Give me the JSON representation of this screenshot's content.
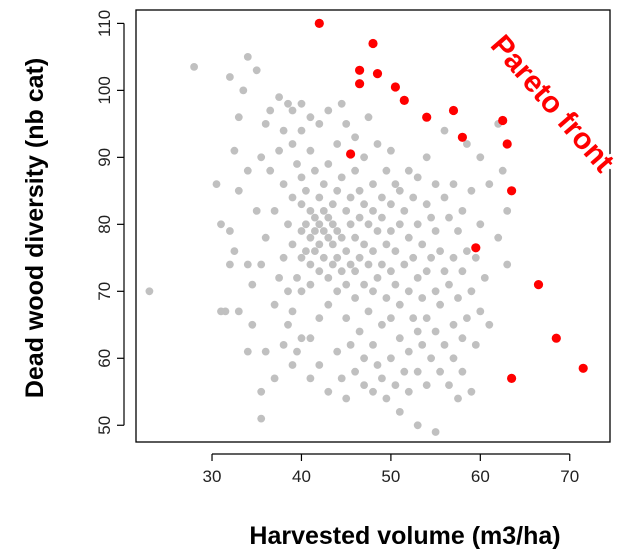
{
  "chart_data": {
    "type": "scatter",
    "xlabel": "Harvested volume (m3/ha)",
    "ylabel": "Dead wood diversity (nb cat)",
    "xlim": [
      21.5,
      74.5
    ],
    "ylim": [
      47.5,
      112
    ],
    "x_ticks": [
      30,
      40,
      50,
      60,
      70
    ],
    "y_ticks": [
      50,
      60,
      70,
      80,
      90,
      100,
      110
    ],
    "grid": false,
    "annotation": "Pareto front",
    "colors": {
      "dominated": "#c0c0c0",
      "pareto": "#ff0000",
      "annotation": "#ff0000",
      "axis": "#000000"
    },
    "series": [
      {
        "key": "dominated",
        "points": [
          [
            23,
            70
          ],
          [
            28,
            103.5
          ],
          [
            30.5,
            86
          ],
          [
            31,
            67
          ],
          [
            31,
            80
          ],
          [
            31.5,
            67
          ],
          [
            32,
            74
          ],
          [
            32,
            79
          ],
          [
            32,
            102
          ],
          [
            32.5,
            76
          ],
          [
            32.5,
            91
          ],
          [
            33,
            67
          ],
          [
            33,
            85
          ],
          [
            33,
            96
          ],
          [
            33.5,
            100
          ],
          [
            34,
            61
          ],
          [
            34,
            74
          ],
          [
            34,
            88
          ],
          [
            34,
            105
          ],
          [
            34.5,
            65
          ],
          [
            34.5,
            71
          ],
          [
            35,
            103
          ],
          [
            35,
            82
          ],
          [
            35.5,
            74
          ],
          [
            35.5,
            51
          ],
          [
            35.5,
            55
          ],
          [
            35.5,
            90
          ],
          [
            36,
            61
          ],
          [
            36,
            78
          ],
          [
            36,
            95
          ],
          [
            36.5,
            88
          ],
          [
            36.5,
            97
          ],
          [
            37,
            57
          ],
          [
            37,
            68
          ],
          [
            37,
            82
          ],
          [
            37.5,
            72
          ],
          [
            37.5,
            99
          ],
          [
            37.5,
            91
          ],
          [
            38,
            62
          ],
          [
            38,
            75
          ],
          [
            38,
            86
          ],
          [
            38,
            94
          ],
          [
            38.5,
            65
          ],
          [
            38.5,
            70
          ],
          [
            38.5,
            80
          ],
          [
            38.5,
            98
          ],
          [
            39,
            59
          ],
          [
            39,
            67
          ],
          [
            39,
            77
          ],
          [
            39,
            84
          ],
          [
            39,
            92
          ],
          [
            39,
            97
          ],
          [
            39.5,
            61
          ],
          [
            39.5,
            72
          ],
          [
            39.5,
            89
          ],
          [
            40,
            63
          ],
          [
            40,
            70
          ],
          [
            40,
            75
          ],
          [
            40,
            79
          ],
          [
            40,
            83
          ],
          [
            40,
            87
          ],
          [
            40,
            94
          ],
          [
            40,
            98
          ],
          [
            40.5,
            76
          ],
          [
            40.5,
            80
          ],
          [
            40.5,
            85
          ],
          [
            41,
            57
          ],
          [
            41,
            63
          ],
          [
            41,
            71
          ],
          [
            41,
            74
          ],
          [
            41,
            78
          ],
          [
            41,
            82
          ],
          [
            41,
            91
          ],
          [
            41,
            96
          ],
          [
            41.5,
            76
          ],
          [
            41.5,
            79
          ],
          [
            41.5,
            81
          ],
          [
            41.5,
            88
          ],
          [
            42,
            59
          ],
          [
            42,
            66
          ],
          [
            42,
            73
          ],
          [
            42,
            77
          ],
          [
            42,
            80
          ],
          [
            42,
            84
          ],
          [
            42,
            95
          ],
          [
            42.5,
            75
          ],
          [
            42.5,
            79
          ],
          [
            42.5,
            82
          ],
          [
            42.5,
            86
          ],
          [
            43,
            55
          ],
          [
            43,
            68
          ],
          [
            43,
            72
          ],
          [
            43,
            78
          ],
          [
            43,
            81
          ],
          [
            43,
            89
          ],
          [
            43,
            97
          ],
          [
            43.5,
            74
          ],
          [
            43.5,
            77
          ],
          [
            43.5,
            80
          ],
          [
            43.5,
            83
          ],
          [
            44,
            61
          ],
          [
            44,
            70
          ],
          [
            44,
            75
          ],
          [
            44,
            79
          ],
          [
            44,
            85
          ],
          [
            44,
            92
          ],
          [
            44.5,
            57
          ],
          [
            44.5,
            73
          ],
          [
            44.5,
            78
          ],
          [
            44.5,
            87
          ],
          [
            44.5,
            98
          ],
          [
            45,
            54
          ],
          [
            45,
            66
          ],
          [
            45,
            71
          ],
          [
            45,
            76
          ],
          [
            45,
            82
          ],
          [
            45,
            95
          ],
          [
            45.5,
            62
          ],
          [
            45.5,
            74
          ],
          [
            45.5,
            80
          ],
          [
            45.5,
            84
          ],
          [
            46,
            58
          ],
          [
            46,
            69
          ],
          [
            46,
            73
          ],
          [
            46,
            78
          ],
          [
            46,
            88
          ],
          [
            46,
            93
          ],
          [
            46.5,
            64
          ],
          [
            46.5,
            75
          ],
          [
            46.5,
            81
          ],
          [
            46.5,
            85
          ],
          [
            47,
            56
          ],
          [
            47,
            60
          ],
          [
            47,
            71
          ],
          [
            47,
            77
          ],
          [
            47,
            83
          ],
          [
            47,
            90
          ],
          [
            47.5,
            67
          ],
          [
            47.5,
            74
          ],
          [
            47.5,
            80
          ],
          [
            47.5,
            96
          ],
          [
            48,
            55
          ],
          [
            48,
            62
          ],
          [
            48,
            70
          ],
          [
            48,
            76
          ],
          [
            48,
            82
          ],
          [
            48,
            86
          ],
          [
            48.5,
            59
          ],
          [
            48.5,
            72
          ],
          [
            48.5,
            79
          ],
          [
            48.5,
            92
          ],
          [
            49,
            57
          ],
          [
            49,
            65
          ],
          [
            49,
            74
          ],
          [
            49,
            81
          ],
          [
            49,
            84
          ],
          [
            49.5,
            54
          ],
          [
            49.5,
            69
          ],
          [
            49.5,
            77
          ],
          [
            49.5,
            88
          ],
          [
            50,
            60
          ],
          [
            50,
            66
          ],
          [
            50,
            73
          ],
          [
            50,
            79
          ],
          [
            50,
            83
          ],
          [
            50,
            91
          ],
          [
            50.5,
            56
          ],
          [
            50.5,
            71
          ],
          [
            50.5,
            76
          ],
          [
            50.5,
            86
          ],
          [
            51,
            52
          ],
          [
            51,
            63
          ],
          [
            51,
            68
          ],
          [
            51,
            80
          ],
          [
            51,
            85
          ],
          [
            51.5,
            58
          ],
          [
            51.5,
            74
          ],
          [
            51.5,
            82
          ],
          [
            52,
            55
          ],
          [
            52,
            61
          ],
          [
            52,
            70
          ],
          [
            52,
            78
          ],
          [
            52,
            88
          ],
          [
            52.5,
            66
          ],
          [
            52.5,
            75
          ],
          [
            52.5,
            84
          ],
          [
            53,
            50
          ],
          [
            53,
            58
          ],
          [
            53,
            64
          ],
          [
            53,
            72
          ],
          [
            53,
            80
          ],
          [
            53,
            87
          ],
          [
            53.5,
            62
          ],
          [
            53.5,
            69
          ],
          [
            53.5,
            77
          ],
          [
            54,
            56
          ],
          [
            54,
            66
          ],
          [
            54,
            73
          ],
          [
            54,
            83
          ],
          [
            54,
            90
          ],
          [
            54.5,
            60
          ],
          [
            54.5,
            75
          ],
          [
            54.5,
            81
          ],
          [
            55,
            49
          ],
          [
            55,
            64
          ],
          [
            55,
            70
          ],
          [
            55,
            79
          ],
          [
            55,
            86
          ],
          [
            55.5,
            58
          ],
          [
            55.5,
            68
          ],
          [
            55.5,
            76
          ],
          [
            56,
            62
          ],
          [
            56,
            73
          ],
          [
            56,
            84
          ],
          [
            56,
            94
          ],
          [
            56.5,
            56
          ],
          [
            56.5,
            71
          ],
          [
            56.5,
            81
          ],
          [
            57,
            60
          ],
          [
            57,
            65
          ],
          [
            57,
            75
          ],
          [
            57,
            86
          ],
          [
            57.5,
            54
          ],
          [
            57.5,
            69
          ],
          [
            57.5,
            79
          ],
          [
            58,
            58
          ],
          [
            58,
            63
          ],
          [
            58,
            73
          ],
          [
            58,
            82
          ],
          [
            58.5,
            66
          ],
          [
            58.5,
            76
          ],
          [
            58.5,
            92
          ],
          [
            59,
            55
          ],
          [
            59,
            70
          ],
          [
            59,
            85
          ],
          [
            59.5,
            62
          ],
          [
            59.5,
            75
          ],
          [
            60,
            67
          ],
          [
            60,
            80
          ],
          [
            60,
            90
          ],
          [
            60.5,
            72
          ],
          [
            61,
            65
          ],
          [
            61,
            86
          ],
          [
            62,
            78
          ],
          [
            62,
            95
          ],
          [
            62.5,
            88
          ],
          [
            63,
            82
          ],
          [
            63,
            74
          ],
          [
            63,
            92
          ]
        ]
      },
      {
        "key": "pareto",
        "points": [
          [
            42,
            110
          ],
          [
            48,
            107
          ],
          [
            46.5,
            103
          ],
          [
            48.5,
            102.5
          ],
          [
            46.5,
            101
          ],
          [
            50.5,
            100.5
          ],
          [
            51.5,
            98.5
          ],
          [
            57,
            97
          ],
          [
            54,
            96
          ],
          [
            62.5,
            95.5
          ],
          [
            58,
            93
          ],
          [
            63,
            92
          ],
          [
            45.5,
            90.5
          ],
          [
            63.5,
            85
          ],
          [
            59.5,
            76.5
          ],
          [
            66.5,
            71
          ],
          [
            68.5,
            63
          ],
          [
            71.5,
            58.5
          ],
          [
            63.5,
            57
          ]
        ]
      }
    ]
  }
}
